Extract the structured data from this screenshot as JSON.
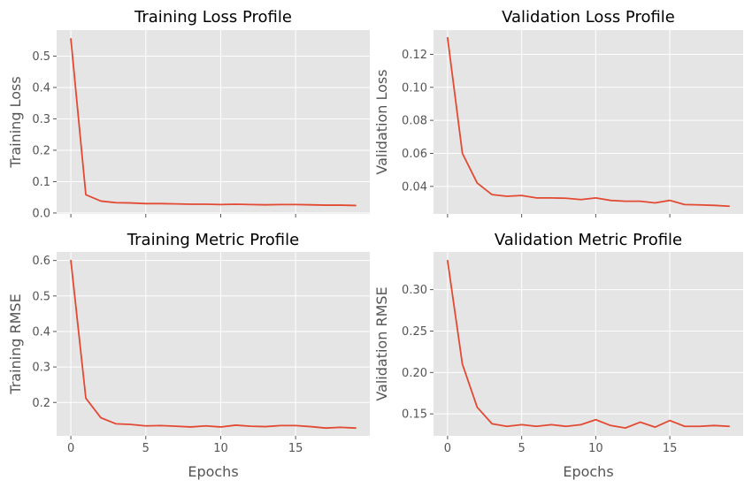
{
  "chart_data": [
    {
      "type": "line",
      "title": "Training Loss Profile",
      "xlabel": "",
      "ylabel": "Training Loss",
      "xlim": [
        -0.95,
        19.95
      ],
      "ylim": [
        -0.003,
        0.583
      ],
      "xticks": [
        0,
        5,
        10,
        15
      ],
      "yticks": [
        0.0,
        0.1,
        0.2,
        0.3,
        0.4,
        0.5
      ],
      "ytick_labels": [
        "0.0",
        "0.1",
        "0.2",
        "0.3",
        "0.4",
        "0.5"
      ],
      "show_xtick_labels": false,
      "grid": true,
      "color": "#E24A33",
      "series": [
        {
          "x": [
            0,
            1,
            2,
            3,
            4,
            5,
            6,
            7,
            8,
            9,
            10,
            11,
            12,
            13,
            14,
            15,
            16,
            17,
            18,
            19
          ],
          "values": [
            0.555,
            0.058,
            0.038,
            0.033,
            0.032,
            0.03,
            0.03,
            0.029,
            0.028,
            0.028,
            0.027,
            0.028,
            0.027,
            0.026,
            0.027,
            0.027,
            0.026,
            0.025,
            0.025,
            0.024
          ]
        }
      ]
    },
    {
      "type": "line",
      "title": "Validation Loss Profile",
      "xlabel": "",
      "ylabel": "Validation Loss",
      "xlim": [
        -0.95,
        19.95
      ],
      "ylim": [
        0.0233,
        0.1347
      ],
      "xticks": [
        0,
        5,
        10,
        15
      ],
      "yticks": [
        0.04,
        0.06,
        0.08,
        0.1,
        0.12
      ],
      "ytick_labels": [
        "0.04",
        "0.06",
        "0.08",
        "0.10",
        "0.12"
      ],
      "show_xtick_labels": false,
      "grid": true,
      "color": "#E24A33",
      "series": [
        {
          "x": [
            0,
            1,
            2,
            3,
            4,
            5,
            6,
            7,
            8,
            9,
            10,
            11,
            12,
            13,
            14,
            15,
            16,
            17,
            18,
            19
          ],
          "values": [
            0.13,
            0.06,
            0.042,
            0.035,
            0.034,
            0.0345,
            0.033,
            0.033,
            0.0328,
            0.032,
            0.033,
            0.0315,
            0.031,
            0.031,
            0.03,
            0.0315,
            0.029,
            0.0288,
            0.0285,
            0.028
          ]
        }
      ]
    },
    {
      "type": "line",
      "title": "Training Metric Profile",
      "xlabel": "Epochs",
      "ylabel": "Training RMSE",
      "xlim": [
        -0.95,
        19.95
      ],
      "ylim": [
        0.106,
        0.624
      ],
      "xticks": [
        0,
        5,
        10,
        15
      ],
      "xtick_labels": [
        "0",
        "5",
        "10",
        "15"
      ],
      "yticks": [
        0.2,
        0.3,
        0.4,
        0.5,
        0.6
      ],
      "ytick_labels": [
        "0.2",
        "0.3",
        "0.4",
        "0.5",
        "0.6"
      ],
      "show_xtick_labels": true,
      "grid": true,
      "color": "#E24A33",
      "series": [
        {
          "x": [
            0,
            1,
            2,
            3,
            4,
            5,
            6,
            7,
            8,
            9,
            10,
            11,
            12,
            13,
            14,
            15,
            16,
            17,
            18,
            19
          ],
          "values": [
            0.6,
            0.212,
            0.157,
            0.14,
            0.138,
            0.134,
            0.135,
            0.133,
            0.131,
            0.134,
            0.131,
            0.136,
            0.133,
            0.132,
            0.135,
            0.135,
            0.132,
            0.128,
            0.13,
            0.128
          ]
        }
      ]
    },
    {
      "type": "line",
      "title": "Validation Metric Profile",
      "xlabel": "Epochs",
      "ylabel": "Validation RMSE",
      "xlim": [
        -0.95,
        19.95
      ],
      "ylim": [
        0.1235,
        0.3455
      ],
      "xticks": [
        0,
        5,
        10,
        15
      ],
      "xtick_labels": [
        "0",
        "5",
        "10",
        "15"
      ],
      "yticks": [
        0.15,
        0.2,
        0.25,
        0.3
      ],
      "ytick_labels": [
        "0.15",
        "0.20",
        "0.25",
        "0.30"
      ],
      "show_xtick_labels": true,
      "grid": true,
      "color": "#E24A33",
      "series": [
        {
          "x": [
            0,
            1,
            2,
            3,
            4,
            5,
            6,
            7,
            8,
            9,
            10,
            11,
            12,
            13,
            14,
            15,
            16,
            17,
            18,
            19
          ],
          "values": [
            0.335,
            0.21,
            0.158,
            0.138,
            0.135,
            0.137,
            0.135,
            0.137,
            0.135,
            0.137,
            0.143,
            0.136,
            0.133,
            0.14,
            0.134,
            0.142,
            0.135,
            0.135,
            0.136,
            0.135
          ]
        }
      ]
    }
  ]
}
